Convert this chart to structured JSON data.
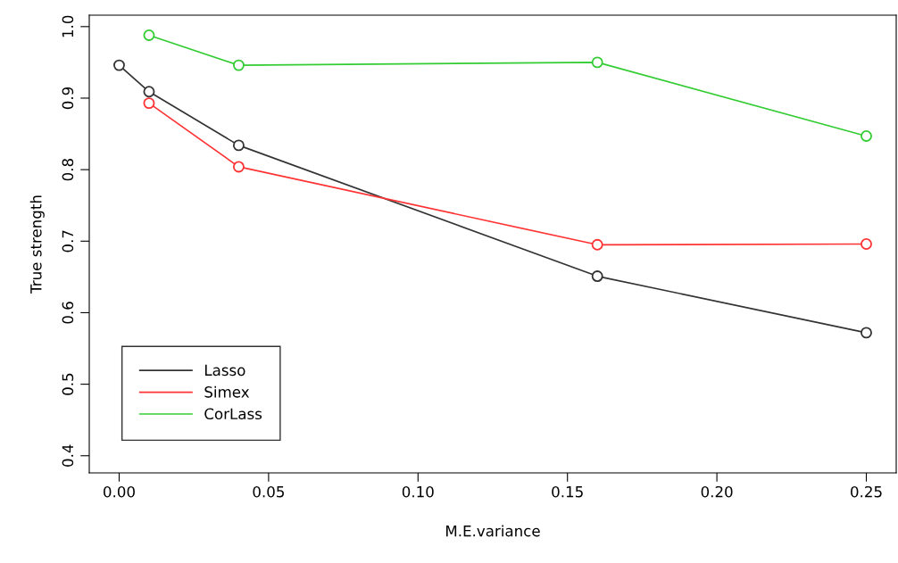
{
  "chart_data": {
    "type": "line",
    "xlabel": "M.E.variance",
    "ylabel": "True strength",
    "xlim": [
      -0.01,
      0.26
    ],
    "xticks": [
      {
        "value": 0,
        "label": "0.00"
      },
      0.05,
      {
        "value": 0.1,
        "label": "0.10"
      },
      0.15,
      {
        "value": 0.2,
        "label": "0.20"
      },
      0.25
    ],
    "ylim": [
      0.376,
      1.016
    ],
    "yticks": [
      0.4,
      0.5,
      0.6,
      0.7,
      0.8,
      0.9,
      {
        "value": 1,
        "label": "1.0"
      }
    ],
    "marker": "circle",
    "grid": false,
    "legend": "bottom left",
    "series": [
      {
        "name": "Lasso",
        "color": "#333333",
        "x": [
          0,
          0.01,
          0.04,
          0.16,
          0.25
        ],
        "values": [
          0.946,
          0.909,
          0.834,
          0.651,
          0.572
        ]
      },
      {
        "name": "Simex",
        "color": "#ff3333",
        "x": [
          0.01,
          0.04,
          0.16,
          0.25
        ],
        "values": [
          0.893,
          0.804,
          0.695,
          0.696
        ]
      },
      {
        "name": "CorLass",
        "color": "#33cc33",
        "x": [
          0.01,
          0.04,
          0.16,
          0.25
        ],
        "values": [
          0.988,
          0.946,
          0.95,
          0.847
        ]
      }
    ]
  }
}
